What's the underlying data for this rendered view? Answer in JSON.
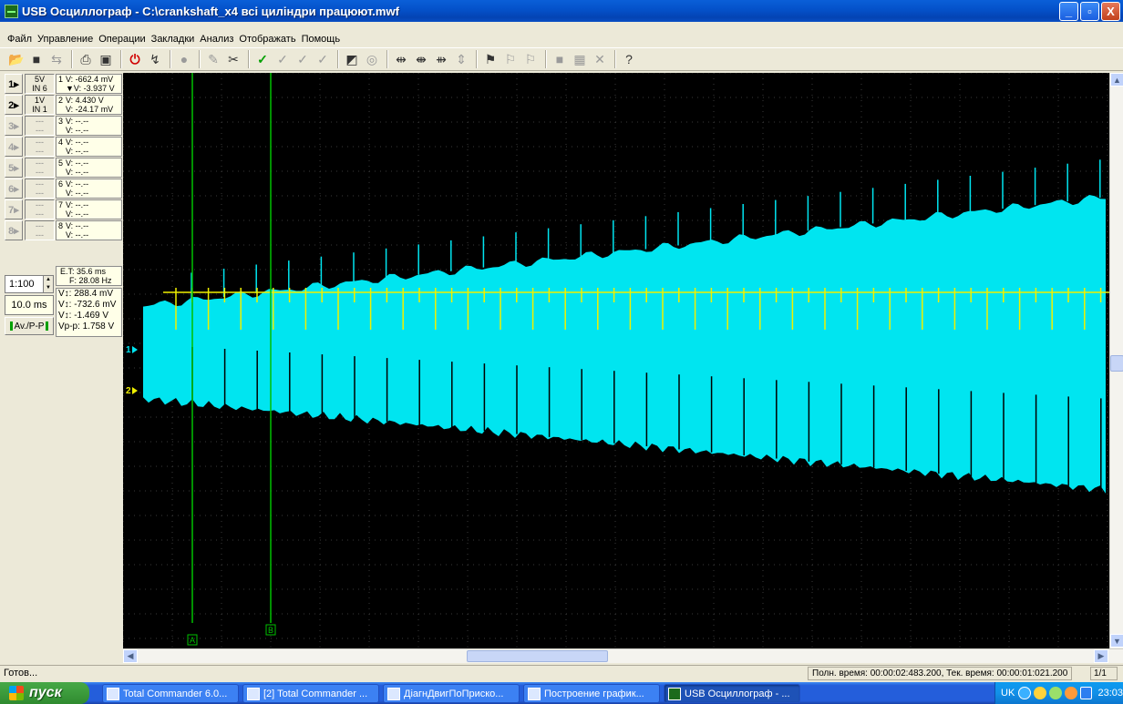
{
  "window": {
    "title": "USB Осциллограф - C:\\crankshaft_x4 всі циліндри працюют.mwf",
    "minimize": "_",
    "maximize": "▫",
    "close": "X"
  },
  "menu": [
    "Файл",
    "Управление",
    "Операции",
    "Закладки",
    "Анализ",
    "Отображать",
    "Помощь"
  ],
  "toolbar_icons": [
    "open-icon",
    "save-icon",
    "export-icon",
    "print-icon",
    "save-image-icon",
    "stop-icon",
    "run-icon",
    "record-icon",
    "cursor-icon",
    "tools-icon",
    "check-icon",
    "check-a-icon",
    "check-b-icon",
    "check-c-icon",
    "contrast-icon",
    "zoom-icon",
    "marker-icon",
    "marker-add-icon",
    "marker-move-icon",
    "marker-range-icon",
    "bookmark-icon",
    "bookmark-a-icon",
    "bookmark-b-icon",
    "fill-icon",
    "grid-icon",
    "clear-icon",
    "help-icon"
  ],
  "channels": [
    {
      "num": "1▸",
      "scale": "5V",
      "input": "IN 6",
      "n": "1",
      "v": "V: -662.4 mV",
      "dv": "▼V: -3.937 V",
      "active": true
    },
    {
      "num": "2▸",
      "scale": "1V",
      "input": "IN 1",
      "n": "2",
      "v": "V: 4.430 V",
      "dv": "V: -24.17 mV",
      "active": true
    },
    {
      "num": "3▸",
      "scale": "---",
      "input": "---",
      "n": "3",
      "v": "V: --.--",
      "dv": "V: --.--",
      "active": false
    },
    {
      "num": "4▸",
      "scale": "---",
      "input": "---",
      "n": "4",
      "v": "V: --.--",
      "dv": "V: --.--",
      "active": false
    },
    {
      "num": "5▸",
      "scale": "---",
      "input": "---",
      "n": "5",
      "v": "V: --.--",
      "dv": "V: --.--",
      "active": false
    },
    {
      "num": "6▸",
      "scale": "---",
      "input": "---",
      "n": "6",
      "v": "V: --.--",
      "dv": "V: --.--",
      "active": false
    },
    {
      "num": "7▸",
      "scale": "---",
      "input": "---",
      "n": "7",
      "v": "V: --.--",
      "dv": "V: --.--",
      "active": false
    },
    {
      "num": "8▸",
      "scale": "---",
      "input": "---",
      "n": "8",
      "v": "V: --.--",
      "dv": "V: --.--",
      "active": false
    }
  ],
  "timing": {
    "period": "E.T: 35.6 ms",
    "freq": "F: 28.08 Hz"
  },
  "measurements": [
    "V↕: 288.4 mV",
    "V↕: -732.6 mV",
    "V↕: -1.469 V",
    "Vp-p: 1.758 V"
  ],
  "ratio": "1:100",
  "timebase": "10.0 ms",
  "mode_button": "Av./P-P",
  "markers": {
    "a": "A",
    "b": "B",
    "ch1": "1",
    "ch2": "2"
  },
  "colors": {
    "ch1": "#00e5f0",
    "ch2": "#f0f000",
    "cursor": "#00c000",
    "grid": "#3a3a3a"
  },
  "status": {
    "left": "Готов...",
    "right": "Полн. время: 00:00:02:483.200, Тек. время: 00:00:01:021.200",
    "page": "1/1"
  },
  "taskbar": {
    "start": "пуск",
    "tasks": [
      "Total Commander 6.0...",
      "[2] Total Commander ...",
      "ДіагнДвигПоПриско...",
      "Построение график...",
      "USB Осциллограф - ..."
    ],
    "lang": "UK",
    "clock": "23:03"
  }
}
